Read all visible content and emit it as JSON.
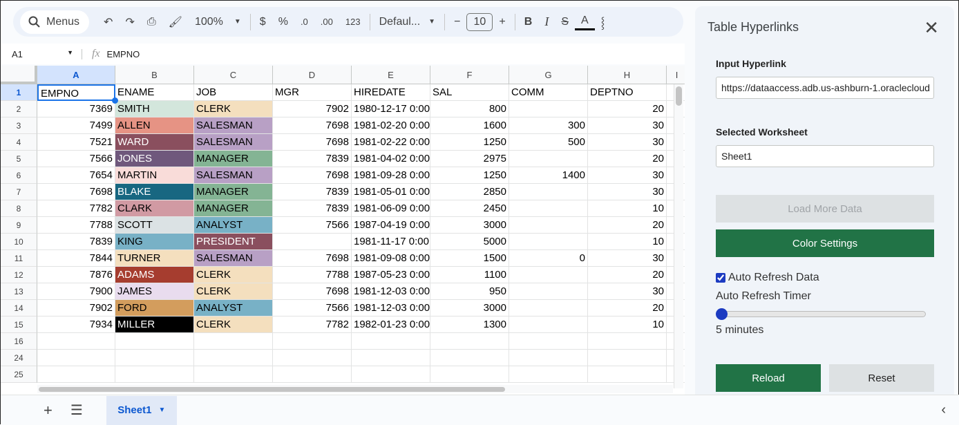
{
  "toolbar": {
    "menus_label": "Menus",
    "zoom": "100%",
    "currency": "$",
    "percent": "%",
    "dec_decrease": ".0",
    "dec_increase": ".00",
    "format_123": "123",
    "font": "Defaul...",
    "font_size": "10",
    "bold": "B",
    "italic": "I",
    "text_color": "A"
  },
  "formula_bar": {
    "cell_ref": "A1",
    "fx": "fx",
    "value": "EMPNO"
  },
  "columns": [
    "A",
    "B",
    "C",
    "D",
    "E",
    "F",
    "G",
    "H",
    "I"
  ],
  "row_numbers": [
    "1",
    "2",
    "3",
    "4",
    "5",
    "6",
    "7",
    "8",
    "9",
    "10",
    "11",
    "12",
    "13",
    "14",
    "15",
    "16",
    "24",
    "25"
  ],
  "headers": [
    "EMPNO",
    "ENAME",
    "JOB",
    "MGR",
    "HIREDATE",
    "SAL",
    "COMM",
    "DEPTNO"
  ],
  "rows": [
    [
      "7369",
      "SMITH",
      "CLERK",
      "7902",
      "1980-12-17 0:00",
      "800",
      "",
      "20"
    ],
    [
      "7499",
      "ALLEN",
      "SALESMAN",
      "7698",
      "1981-02-20 0:00",
      "1600",
      "300",
      "30"
    ],
    [
      "7521",
      "WARD",
      "SALESMAN",
      "7698",
      "1981-02-22 0:00",
      "1250",
      "500",
      "30"
    ],
    [
      "7566",
      "JONES",
      "MANAGER",
      "7839",
      "1981-04-02 0:00",
      "2975",
      "",
      "20"
    ],
    [
      "7654",
      "MARTIN",
      "SALESMAN",
      "7698",
      "1981-09-28 0:00",
      "1250",
      "1400",
      "30"
    ],
    [
      "7698",
      "BLAKE",
      "MANAGER",
      "7839",
      "1981-05-01 0:00",
      "2850",
      "",
      "30"
    ],
    [
      "7782",
      "CLARK",
      "MANAGER",
      "7839",
      "1981-06-09 0:00",
      "2450",
      "",
      "10"
    ],
    [
      "7788",
      "SCOTT",
      "ANALYST",
      "7566",
      "1987-04-19 0:00",
      "3000",
      "",
      "20"
    ],
    [
      "7839",
      "KING",
      "PRESIDENT",
      "",
      "1981-11-17 0:00",
      "5000",
      "",
      "10"
    ],
    [
      "7844",
      "TURNER",
      "SALESMAN",
      "7698",
      "1981-09-08 0:00",
      "1500",
      "0",
      "30"
    ],
    [
      "7876",
      "ADAMS",
      "CLERK",
      "7788",
      "1987-05-23 0:00",
      "1100",
      "",
      "20"
    ],
    [
      "7900",
      "JAMES",
      "CLERK",
      "7698",
      "1981-12-03 0:00",
      "950",
      "",
      "30"
    ],
    [
      "7902",
      "FORD",
      "ANALYST",
      "7566",
      "1981-12-03 0:00",
      "3000",
      "",
      "20"
    ],
    [
      "7934",
      "MILLER",
      "CLERK",
      "7782",
      "1982-01-23 0:00",
      "1300",
      "",
      "10"
    ]
  ],
  "ename_colors": [
    [
      "#d3e6dc",
      "#000"
    ],
    [
      "#e69384",
      "#000"
    ],
    [
      "#8a4f5e",
      "#fff"
    ],
    [
      "#6f587c",
      "#fff"
    ],
    [
      "#f9dcd9",
      "#000"
    ],
    [
      "#186781",
      "#fff"
    ],
    [
      "#d19aa3",
      "#000"
    ],
    [
      "#dbe2e4",
      "#000"
    ],
    [
      "#78b1c6",
      "#000"
    ],
    [
      "#f4dfbe",
      "#000"
    ],
    [
      "#a63d2f",
      "#fff"
    ],
    [
      "#e9dcee",
      "#000"
    ],
    [
      "#d39d5d",
      "#000"
    ],
    [
      "#000000",
      "#fff"
    ]
  ],
  "job_colors": {
    "CLERK": [
      "#f4dfbe",
      "#000"
    ],
    "SALESMAN": [
      "#b8a0c5",
      "#000"
    ],
    "MANAGER": [
      "#84b494",
      "#000"
    ],
    "ANALYST": [
      "#78b1c6",
      "#000"
    ],
    "PRESIDENT": [
      "#8a4f5e",
      "#fff"
    ]
  },
  "sheet_tab": {
    "label": "Sheet1"
  },
  "panel": {
    "title": "Table Hyperlinks",
    "input_hyperlink_label": "Input Hyperlink",
    "input_hyperlink_value": "https://dataaccess.adb.us-ashburn-1.oraclecloud",
    "selected_worksheet_label": "Selected Worksheet",
    "selected_worksheet_value": "Sheet1",
    "load_more": "Load More Data",
    "color_settings": "Color Settings",
    "auto_refresh_label": "Auto Refresh Data",
    "auto_refresh_checked": true,
    "timer_label": "Auto Refresh Timer",
    "timer_value": "5 minutes",
    "timer_slider_fraction": 0,
    "reload": "Reload",
    "reset": "Reset"
  },
  "colors": {
    "accent_green": "#217346",
    "accent_blue": "#1a73e8",
    "slider_thumb": "#1c3bc1"
  }
}
